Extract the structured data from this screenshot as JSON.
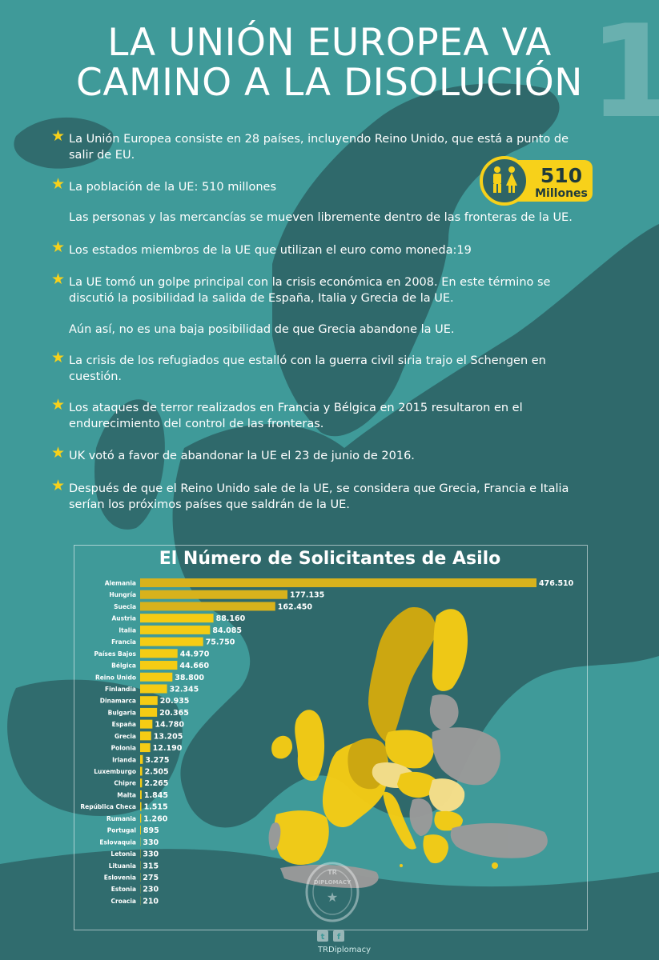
{
  "header": {
    "title_line1": "LA UNIÓN EUROPEA VA",
    "title_line2": "CAMINO A LA DISOLUCIÓN",
    "page_number": "1"
  },
  "facts": [
    {
      "text": "La Unión Europea consiste en 28 países, incluyendo Reino Unido, que está a punto de salir de EU.",
      "star": true
    },
    {
      "text": "La población de la UE: 510 millones",
      "star": true
    },
    {
      "text": "Las personas y las mercancías se mueven libremente dentro de las fronteras de la UE.",
      "star": false
    },
    {
      "text": "Los estados miembros de la UE que utilizan el euro como moneda:19",
      "star": true
    },
    {
      "text": "La UE tomó un golpe principal con la crisis económica en 2008. En este término se discutió la posibilidad la salida de España, Italia y Grecia de la UE.",
      "star": true
    },
    {
      "text": "Aún así, no es una baja posibilidad de que Grecia abandone la UE.",
      "star": false
    },
    {
      "text": "La crisis de los refugiados que estalló con la guerra civil siria trajo el Schengen en cuestión.",
      "star": true
    },
    {
      "text": "Los ataques de terror realizados en Francia y Bélgica en 2015 resultaron en el endurecimiento del control de las fronteras.",
      "star": true
    },
    {
      "text": "UK votó a favor de abandonar la UE el 23 de junio de 2016.",
      "star": true
    },
    {
      "text": "Después de que el Reino Unido sale de la UE, se considera que Grecia, Francia e Italia serían los próximos países que saldrán de la UE.",
      "star": true
    }
  ],
  "population_badge": {
    "value": "510",
    "unit": "Millones",
    "icon": "people-icon"
  },
  "colors": {
    "background": "#3f9a99",
    "land": "#2e6466",
    "accent": "#f7d11a",
    "bar": "#d8b21c",
    "bar_small": "#f5cc14",
    "eu_gray": "#9a9a9a",
    "text": "#ffffff"
  },
  "chart_data": {
    "type": "bar",
    "orientation": "horizontal",
    "title": "El Número de Solicitantes de Asilo",
    "categories": [
      "Alemania",
      "Hungría",
      "Suecia",
      "Austria",
      "Italia",
      "Francia",
      "Países Bajos",
      "Bélgica",
      "Reino Unido",
      "Finlandia",
      "Dinamarca",
      "Bulgaria",
      "España",
      "Grecia",
      "Polonia",
      "Irlanda",
      "Luxemburgo",
      "Chipre",
      "Malta",
      "República Checa",
      "Rumania",
      "Portugal",
      "Eslovaquia",
      "Letonia",
      "Lituania",
      "Eslovenia",
      "Estonia",
      "Croacia"
    ],
    "values": [
      476510,
      177135,
      162450,
      88160,
      84085,
      75750,
      44970,
      44660,
      38800,
      32345,
      20935,
      20365,
      14780,
      13205,
      12190,
      3275,
      2505,
      2265,
      1845,
      1515,
      1260,
      895,
      330,
      330,
      315,
      275,
      230,
      210
    ],
    "value_labels": [
      "476.510",
      "177.135",
      "162.450",
      "88.160",
      "84.085",
      "75.750",
      "44.970",
      "44.660",
      "38.800",
      "32.345",
      "20.935",
      "20.365",
      "14.780",
      "13.205",
      "12.190",
      "3.275",
      "2.505",
      "2.265",
      "1.845",
      "1.515",
      "1.260",
      "895",
      "330",
      "330",
      "315",
      "275",
      "230",
      "210"
    ],
    "xlim": [
      0,
      476510
    ],
    "grid": false,
    "legend": "none"
  },
  "footer": {
    "logo_text_top": "TR",
    "logo_text_ring": "DIPLOMACY",
    "brand": "TRDiplomacy",
    "social_icons": [
      "twitter-icon",
      "facebook-icon"
    ],
    "social_twitter": "t",
    "social_facebook": "f"
  }
}
